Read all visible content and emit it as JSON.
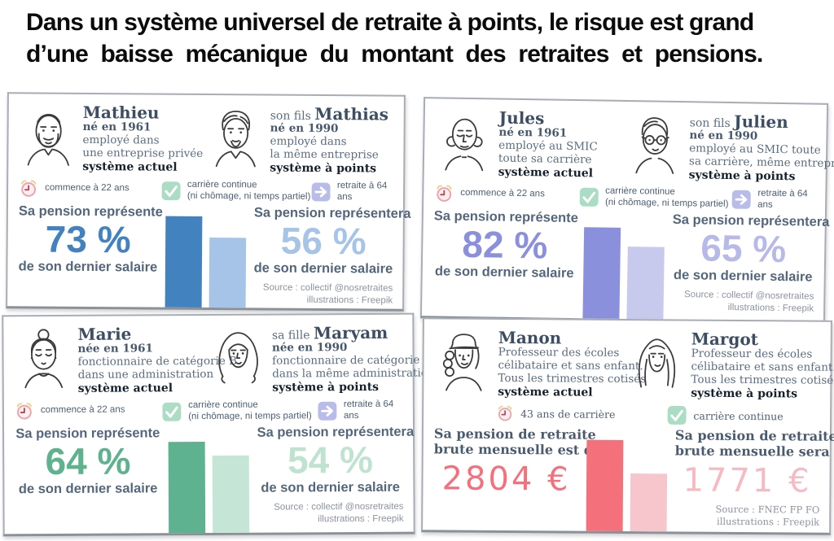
{
  "title": {
    "line1": "Dans un système universel de retraite à points, le risque est grand",
    "line2": "d’une baisse mécanique du montant des retraites et pensions."
  },
  "icons": {
    "clock": "alarm-clock",
    "check": "checkmark",
    "arrow": "arrow-right"
  },
  "cards": [
    {
      "id": "mathieu-mathias",
      "accent": "#4282bf",
      "accent_soft": "#a6c4e7",
      "left": {
        "prefix": "",
        "name": "Mathieu",
        "birth": "né en 1961",
        "lines": [
          "employé dans",
          "une entreprise privée"
        ],
        "system": "système actuel",
        "stat_label": "Sa pension représente",
        "stat_value": "73 %",
        "stat_sub": "de son dernier salaire"
      },
      "right": {
        "prefix": "son fils ",
        "name": "Mathias",
        "birth": "né en 1990",
        "lines": [
          "employé dans",
          "la même entreprise"
        ],
        "system": "système à points",
        "stat_label": "Sa pension représentera",
        "stat_value": "56 %",
        "stat_sub": "de son dernier salaire"
      },
      "badges": {
        "start": "commence à 22 ans",
        "career_1": "carrière continue",
        "career_2": "(ni chômage, ni temps partiel)",
        "retire": "retraite à 64 ans"
      },
      "source": [
        "Source : collectif @nosretraites",
        "illustrations : Freepik"
      ]
    },
    {
      "id": "jules-julien",
      "accent": "#8b90dc",
      "accent_soft": "#b7bae8",
      "left": {
        "prefix": "",
        "name": "Jules",
        "birth": "né en 1961",
        "lines": [
          "employé au SMIC",
          "toute sa carrière"
        ],
        "system": "système actuel",
        "stat_label": "Sa pension représente",
        "stat_value": "82 %",
        "stat_sub": "de son dernier salaire"
      },
      "right": {
        "prefix": "son fils ",
        "name": "Julien",
        "birth": "né en 1990",
        "lines": [
          "employé au SMIC toute",
          "sa carrière, même entreprise"
        ],
        "system": "système à points",
        "stat_label": "Sa pension représentera",
        "stat_value": "65 %",
        "stat_sub": "de son dernier salaire"
      },
      "badges": {
        "start": "commence à 22 ans",
        "career_1": "carrière continue",
        "career_2": "(ni chômage, ni temps partiel)",
        "retire": "retraite à 64 ans"
      },
      "source": [
        "Source : collectif @nosretraites",
        "illustrations : Freepik"
      ]
    },
    {
      "id": "marie-maryam",
      "accent": "#5eb28f",
      "accent_soft": "#c0e2d1",
      "left": {
        "prefix": "",
        "name": "Marie",
        "birth": "née en 1961",
        "lines": [
          "fonctionnaire de catégorie B",
          "dans une administration"
        ],
        "system": "système actuel",
        "stat_label": "Sa pension représente",
        "stat_value": "64 %",
        "stat_sub": "de son dernier salaire"
      },
      "right": {
        "prefix": "sa fille ",
        "name": "Maryam",
        "birth": "née en 1990",
        "lines": [
          "fonctionnaire de catégorie B",
          "dans la même administration"
        ],
        "system": "système à points",
        "stat_label": "Sa pension représentera",
        "stat_value": "54 %",
        "stat_sub": "de son dernier salaire"
      },
      "badges": {
        "start": "commence à 22 ans",
        "career_1": "carrière continue",
        "career_2": "(ni chômage, ni temps partiel)",
        "retire": "retraite à 64 ans"
      },
      "source": [
        "Source : collectif @nosretraites",
        "illustrations : Freepik"
      ]
    },
    {
      "id": "manon-margot",
      "accent": "#f4717c",
      "accent_soft": "#f6bac3",
      "left": {
        "prefix": "",
        "name": "Manon",
        "lines": [
          "Professeur des écoles",
          "célibataire et sans enfant.",
          "Tous les trimestres cotisés"
        ],
        "system": "système actuel",
        "stat_label": "Sa pension de retraite",
        "stat_label2": "brute mensuelle est de",
        "stat_value": "2804 €"
      },
      "right": {
        "prefix": "",
        "name": "Margot",
        "lines": [
          "Professeur des écoles",
          "célibataire et sans enfant.",
          "Tous les trimestres cotisés"
        ],
        "system": "système à points",
        "stat_label": "Sa pension de retraite",
        "stat_label2": "brute mensuelle sera de",
        "stat_value": "1771 €"
      },
      "badges": {
        "start": "43 ans de carrière",
        "career_1": "carrière continue"
      },
      "source": [
        "Source : FNEC FP FO",
        "illustrations : Freepik"
      ]
    }
  ],
  "chart_data": [
    {
      "type": "bar",
      "categories": [
        "système actuel",
        "système à points"
      ],
      "values": [
        73,
        56
      ],
      "unit": "%",
      "colors": [
        "#4282bf",
        "#a6c4e7"
      ]
    },
    {
      "type": "bar",
      "categories": [
        "système actuel",
        "système à points"
      ],
      "values": [
        82,
        65
      ],
      "unit": "%",
      "colors": [
        "#8b90dc",
        "#c7c9ed"
      ]
    },
    {
      "type": "bar",
      "categories": [
        "système actuel",
        "système à points"
      ],
      "values": [
        64,
        54
      ],
      "unit": "%",
      "colors": [
        "#5eb28f",
        "#c5e6d6"
      ]
    },
    {
      "type": "bar",
      "categories": [
        "système actuel",
        "système à points"
      ],
      "values": [
        2804,
        1771
      ],
      "unit": "€",
      "colors": [
        "#f4717c",
        "#f7c6cd"
      ]
    }
  ]
}
